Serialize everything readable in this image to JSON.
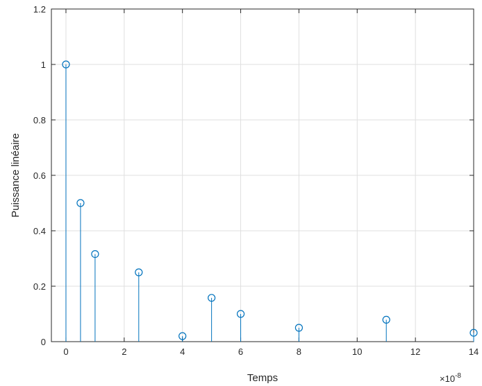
{
  "chart_data": {
    "type": "stem",
    "xlabel": "Temps",
    "ylabel": "Puissance linéaire",
    "x_exponent_label": "×10",
    "x_exponent_power": "-8",
    "xlim": [
      -0.5,
      14
    ],
    "ylim": [
      0,
      1.2
    ],
    "grid": true,
    "xticks": [
      0,
      2,
      4,
      6,
      8,
      10,
      12,
      14
    ],
    "yticks": [
      0,
      0.2,
      0.4,
      0.6,
      0.8,
      1,
      1.2
    ],
    "series": [
      {
        "color": "#0072bd",
        "points": [
          {
            "x": 0,
            "y": 1.0
          },
          {
            "x": 0.5,
            "y": 0.5
          },
          {
            "x": 1,
            "y": 0.316
          },
          {
            "x": 2.5,
            "y": 0.25
          },
          {
            "x": 4,
            "y": 0.02
          },
          {
            "x": 5,
            "y": 0.158
          },
          {
            "x": 6,
            "y": 0.1
          },
          {
            "x": 8,
            "y": 0.05
          },
          {
            "x": 11,
            "y": 0.079
          },
          {
            "x": 14,
            "y": 0.032
          }
        ]
      }
    ]
  }
}
